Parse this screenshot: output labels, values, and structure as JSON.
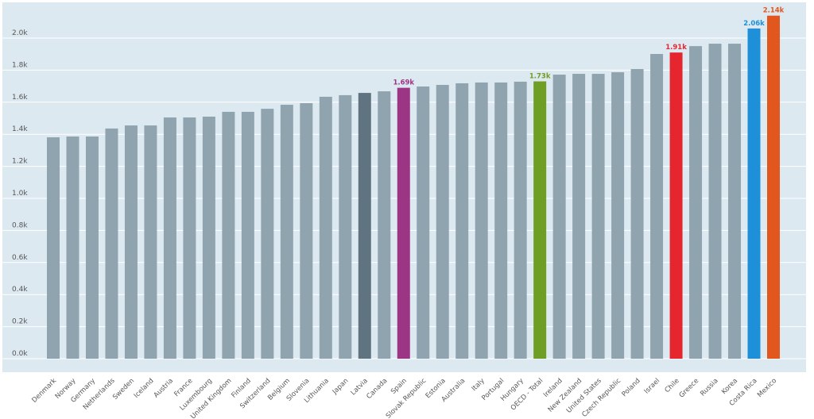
{
  "chart_data": {
    "type": "bar",
    "title": "",
    "xlabel": "",
    "ylabel": "",
    "ylim": [
      0,
      2200
    ],
    "grid": true,
    "y_ticks": [
      "0.0k",
      "0.2k",
      "0.4k",
      "0.6k",
      "0.8k",
      "1.0k",
      "1.2k",
      "1.4k",
      "1.6k",
      "1.8k",
      "2.0k"
    ],
    "default_color": "#90a4b0",
    "categories": [
      "Denmark",
      "Norway",
      "Germany",
      "Netherlands",
      "Sweden",
      "Iceland",
      "Austria",
      "France",
      "Luxembourg",
      "United Kingdom",
      "Finland",
      "Switzerland",
      "Belgium",
      "Slovenia",
      "Lithuania",
      "Japan",
      "Latvia",
      "Canada",
      "Spain",
      "Slovak Republic",
      "Estonia",
      "Australia",
      "Italy",
      "Portugal",
      "Hungary",
      "OECD - Total",
      "Ireland",
      "New Zealand",
      "United States",
      "Czech Republic",
      "Poland",
      "Israel",
      "Chile",
      "Greece",
      "Russia",
      "Korea",
      "Costa Rica",
      "Mexico"
    ],
    "values": [
      1381,
      1386,
      1386,
      1436,
      1455,
      1455,
      1505,
      1505,
      1510,
      1540,
      1540,
      1559,
      1584,
      1594,
      1634,
      1644,
      1658,
      1668,
      1690,
      1698,
      1708,
      1718,
      1723,
      1723,
      1728,
      1730,
      1772,
      1777,
      1777,
      1787,
      1807,
      1901,
      1910,
      1950,
      1965,
      1965,
      2060,
      2140
    ],
    "highlights": {
      "Latvia": {
        "color": "#5f7480"
      },
      "Spain": {
        "color": "#9b3584",
        "label": "1.69k"
      },
      "OECD - Total": {
        "color": "#6e9e23",
        "label": "1.73k"
      },
      "Chile": {
        "color": "#e5262e",
        "label": "1.91k"
      },
      "Costa Rica": {
        "color": "#1e8fd9",
        "label": "2.06k"
      },
      "Mexico": {
        "color": "#e2571e",
        "label": "2.14k"
      }
    }
  }
}
